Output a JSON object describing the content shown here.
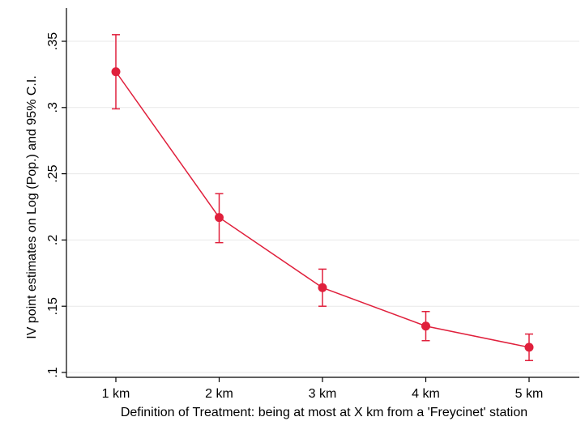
{
  "chart_data": {
    "type": "line",
    "title": "",
    "xlabel": "Definition of Treatment: being at most at X km from a 'Freycinet' station",
    "ylabel": "IV point estimates on Log (Pop.) and 95% C.I.",
    "categories": [
      "1 km",
      "2 km",
      "3 km",
      "4 km",
      "5 km"
    ],
    "series": [
      {
        "values": [
          0.327,
          0.217,
          0.164,
          0.135,
          0.119
        ],
        "ci_low": [
          0.299,
          0.198,
          0.15,
          0.124,
          0.109
        ],
        "ci_high": [
          0.355,
          0.235,
          0.178,
          0.146,
          0.129
        ]
      }
    ],
    "ylim": [
      0.1,
      0.36
    ],
    "yticks": [
      0.1,
      0.15,
      0.2,
      0.25,
      0.3,
      0.35
    ],
    "ytick_labels": [
      ".1",
      ".15",
      ".2",
      ".25",
      ".3",
      ".35"
    ],
    "grid": true,
    "legend": "none",
    "colors": {
      "series": "#e0203c",
      "grid": "#e8e8e8",
      "axis": "#000000",
      "background": "#ffffff"
    }
  }
}
